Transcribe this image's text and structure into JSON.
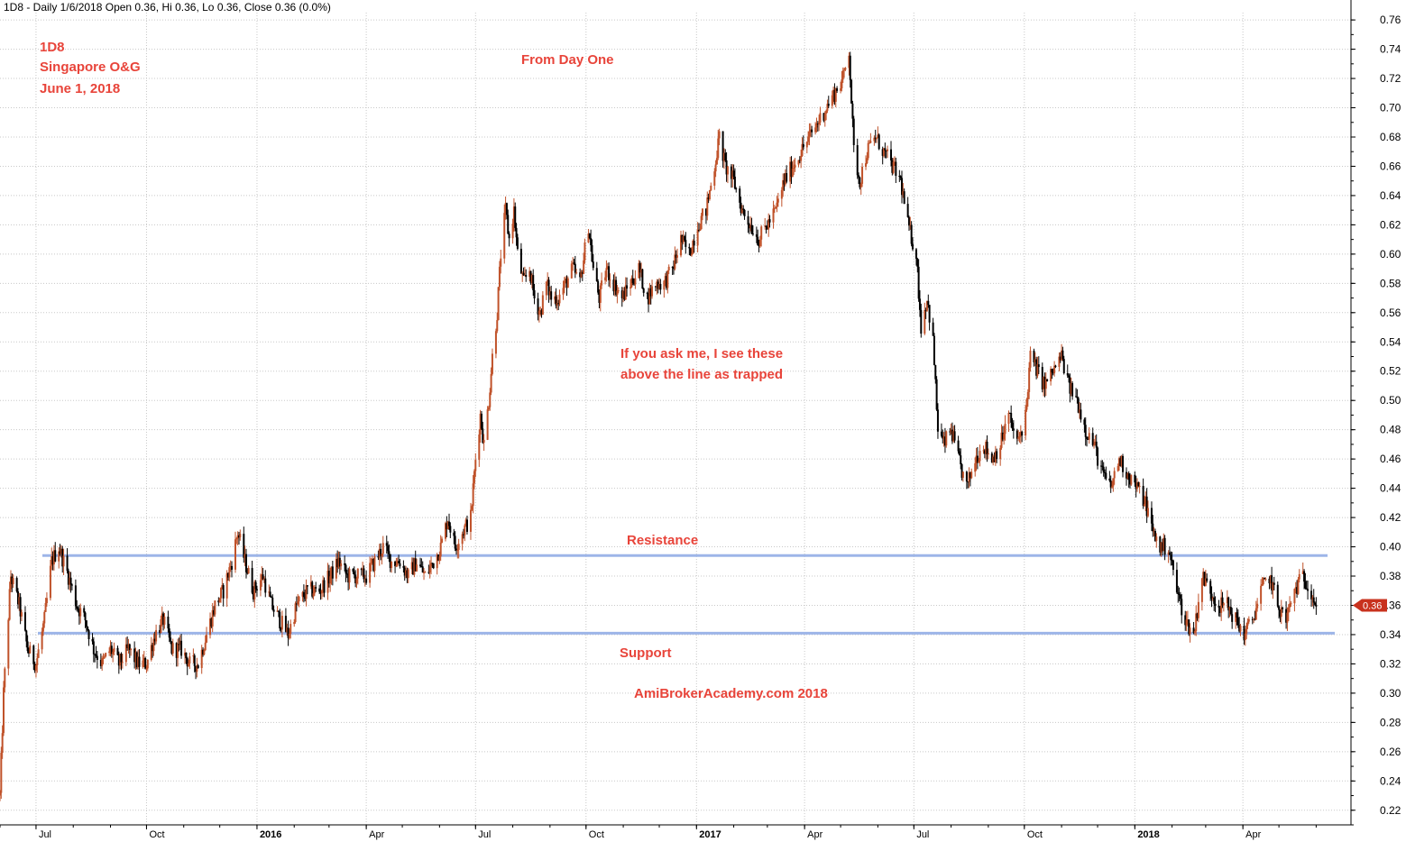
{
  "header": {
    "info": "1D8 - Daily 1/6/2018 Open 0.36, Hi 0.36, Lo 0.36, Close 0.36 (0.0%)"
  },
  "annotations": {
    "ticker": "1D8",
    "sector": "Singapore O&G",
    "date": "June 1, 2018",
    "from_day_one": "From Day One",
    "trapped_line1": "If you ask me, I see these",
    "trapped_line2": "above the line as trapped",
    "resistance": "Resistance",
    "support": "Support",
    "watermark": "AmiBrokerAcademy.com  2018"
  },
  "last_price_label": "0.36",
  "colors": {
    "up_candle": "#c0522a",
    "down_candle": "#000000",
    "level_line": "#9db5e8",
    "annotation": "#e8443a",
    "last_badge": "#c8321e",
    "grid": "#c8c8c8"
  },
  "chart_data": {
    "type": "candlestick",
    "title": "1D8 - Daily 1/6/2018 Open 0.36, Hi 0.36, Lo 0.36, Close 0.36 (0.0%)",
    "y_ticks": [
      "0.22",
      "0.24",
      "0.26",
      "0.28",
      "0.30",
      "0.32",
      "0.34",
      "0.36",
      "0.38",
      "0.40",
      "0.42",
      "0.44",
      "0.46",
      "0.48",
      "0.50",
      "0.52",
      "0.54",
      "0.56",
      "0.58",
      "0.60",
      "0.62",
      "0.64",
      "0.66",
      "0.68",
      "0.70",
      "0.72",
      "0.74",
      "0.76"
    ],
    "ylim": [
      0.21,
      0.765
    ],
    "x_ticks": [
      {
        "label": "Jul",
        "bold": false,
        "date": "2015-07-01"
      },
      {
        "label": "Oct",
        "bold": false,
        "date": "2015-10-01"
      },
      {
        "label": "2016",
        "bold": true,
        "date": "2016-01-01"
      },
      {
        "label": "Apr",
        "bold": false,
        "date": "2016-04-01"
      },
      {
        "label": "Jul",
        "bold": false,
        "date": "2016-07-01"
      },
      {
        "label": "Oct",
        "bold": false,
        "date": "2016-10-01"
      },
      {
        "label": "2017",
        "bold": true,
        "date": "2017-01-01"
      },
      {
        "label": "Apr",
        "bold": false,
        "date": "2017-04-01"
      },
      {
        "label": "Jul",
        "bold": false,
        "date": "2017-07-01"
      },
      {
        "label": "Oct",
        "bold": false,
        "date": "2017-10-01"
      },
      {
        "label": "2018",
        "bold": true,
        "date": "2018-01-01"
      },
      {
        "label": "Apr",
        "bold": false,
        "date": "2018-04-01"
      }
    ],
    "xlim": [
      "2015-06-01",
      "2018-06-30"
    ],
    "resistance": 0.394,
    "support": 0.341,
    "last_close": 0.36,
    "grid": true,
    "price_path": [
      [
        "2015-06-01",
        0.23
      ],
      [
        "2015-06-04",
        0.3
      ],
      [
        "2015-06-10",
        0.38
      ],
      [
        "2015-06-17",
        0.36
      ],
      [
        "2015-06-24",
        0.33
      ],
      [
        "2015-07-01",
        0.32
      ],
      [
        "2015-07-08",
        0.35
      ],
      [
        "2015-07-14",
        0.39
      ],
      [
        "2015-07-20",
        0.4
      ],
      [
        "2015-07-28",
        0.38
      ],
      [
        "2015-08-04",
        0.36
      ],
      [
        "2015-08-11",
        0.35
      ],
      [
        "2015-08-18",
        0.33
      ],
      [
        "2015-08-25",
        0.32
      ],
      [
        "2015-09-01",
        0.33
      ],
      [
        "2015-09-08",
        0.32
      ],
      [
        "2015-09-16",
        0.33
      ],
      [
        "2015-09-24",
        0.32
      ],
      [
        "2015-10-01",
        0.32
      ],
      [
        "2015-10-08",
        0.34
      ],
      [
        "2015-10-15",
        0.35
      ],
      [
        "2015-10-22",
        0.33
      ],
      [
        "2015-10-30",
        0.33
      ],
      [
        "2015-11-06",
        0.32
      ],
      [
        "2015-11-13",
        0.32
      ],
      [
        "2015-11-20",
        0.34
      ],
      [
        "2015-11-27",
        0.36
      ],
      [
        "2015-12-04",
        0.37
      ],
      [
        "2015-12-11",
        0.39
      ],
      [
        "2015-12-16",
        0.41
      ],
      [
        "2015-12-22",
        0.39
      ],
      [
        "2015-12-29",
        0.37
      ],
      [
        "2016-01-06",
        0.38
      ],
      [
        "2016-01-13",
        0.36
      ],
      [
        "2016-01-20",
        0.35
      ],
      [
        "2016-01-27",
        0.34
      ],
      [
        "2016-02-03",
        0.36
      ],
      [
        "2016-02-12",
        0.37
      ],
      [
        "2016-02-22",
        0.37
      ],
      [
        "2016-03-02",
        0.38
      ],
      [
        "2016-03-09",
        0.39
      ],
      [
        "2016-03-16",
        0.38
      ],
      [
        "2016-03-24",
        0.38
      ],
      [
        "2016-04-01",
        0.38
      ],
      [
        "2016-04-08",
        0.39
      ],
      [
        "2016-04-15",
        0.4
      ],
      [
        "2016-04-22",
        0.39
      ],
      [
        "2016-04-29",
        0.39
      ],
      [
        "2016-05-06",
        0.38
      ],
      [
        "2016-05-13",
        0.39
      ],
      [
        "2016-05-20",
        0.38
      ],
      [
        "2016-05-27",
        0.39
      ],
      [
        "2016-06-02",
        0.4
      ],
      [
        "2016-06-08",
        0.42
      ],
      [
        "2016-06-14",
        0.4
      ],
      [
        "2016-06-20",
        0.41
      ],
      [
        "2016-06-27",
        0.42
      ],
      [
        "2016-07-01",
        0.46
      ],
      [
        "2016-07-05",
        0.49
      ],
      [
        "2016-07-08",
        0.47
      ],
      [
        "2016-07-12",
        0.5
      ],
      [
        "2016-07-15",
        0.53
      ],
      [
        "2016-07-19",
        0.56
      ],
      [
        "2016-07-22",
        0.6
      ],
      [
        "2016-07-26",
        0.63
      ],
      [
        "2016-07-29",
        0.61
      ],
      [
        "2016-08-02",
        0.63
      ],
      [
        "2016-08-05",
        0.6
      ],
      [
        "2016-08-10",
        0.58
      ],
      [
        "2016-08-15",
        0.59
      ],
      [
        "2016-08-19",
        0.57
      ],
      [
        "2016-08-24",
        0.56
      ],
      [
        "2016-08-29",
        0.58
      ],
      [
        "2016-09-02",
        0.57
      ],
      [
        "2016-09-08",
        0.57
      ],
      [
        "2016-09-14",
        0.58
      ],
      [
        "2016-09-20",
        0.59
      ],
      [
        "2016-09-26",
        0.58
      ],
      [
        "2016-10-03",
        0.62
      ],
      [
        "2016-10-07",
        0.59
      ],
      [
        "2016-10-12",
        0.57
      ],
      [
        "2016-10-18",
        0.59
      ],
      [
        "2016-10-24",
        0.58
      ],
      [
        "2016-10-31",
        0.57
      ],
      [
        "2016-11-07",
        0.58
      ],
      [
        "2016-11-14",
        0.59
      ],
      [
        "2016-11-21",
        0.57
      ],
      [
        "2016-11-28",
        0.58
      ],
      [
        "2016-12-05",
        0.58
      ],
      [
        "2016-12-12",
        0.59
      ],
      [
        "2016-12-19",
        0.61
      ],
      [
        "2016-12-26",
        0.6
      ],
      [
        "2017-01-02",
        0.62
      ],
      [
        "2017-01-09",
        0.63
      ],
      [
        "2017-01-16",
        0.66
      ],
      [
        "2017-01-20",
        0.68
      ],
      [
        "2017-01-25",
        0.66
      ],
      [
        "2017-02-01",
        0.65
      ],
      [
        "2017-02-08",
        0.63
      ],
      [
        "2017-02-15",
        0.62
      ],
      [
        "2017-02-22",
        0.61
      ],
      [
        "2017-03-01",
        0.62
      ],
      [
        "2017-03-08",
        0.63
      ],
      [
        "2017-03-15",
        0.65
      ],
      [
        "2017-03-22",
        0.66
      ],
      [
        "2017-03-29",
        0.67
      ],
      [
        "2017-04-05",
        0.68
      ],
      [
        "2017-04-12",
        0.69
      ],
      [
        "2017-04-19",
        0.7
      ],
      [
        "2017-04-26",
        0.71
      ],
      [
        "2017-05-03",
        0.72
      ],
      [
        "2017-05-08",
        0.74
      ],
      [
        "2017-05-12",
        0.67
      ],
      [
        "2017-05-17",
        0.65
      ],
      [
        "2017-05-23",
        0.67
      ],
      [
        "2017-05-30",
        0.68
      ],
      [
        "2017-06-06",
        0.67
      ],
      [
        "2017-06-13",
        0.66
      ],
      [
        "2017-06-20",
        0.65
      ],
      [
        "2017-06-26",
        0.62
      ],
      [
        "2017-07-03",
        0.6
      ],
      [
        "2017-07-07",
        0.55
      ],
      [
        "2017-07-12",
        0.57
      ],
      [
        "2017-07-17",
        0.54
      ],
      [
        "2017-07-21",
        0.48
      ],
      [
        "2017-07-26",
        0.47
      ],
      [
        "2017-08-01",
        0.48
      ],
      [
        "2017-08-07",
        0.46
      ],
      [
        "2017-08-14",
        0.44
      ],
      [
        "2017-08-21",
        0.46
      ],
      [
        "2017-08-28",
        0.47
      ],
      [
        "2017-09-04",
        0.46
      ],
      [
        "2017-09-11",
        0.47
      ],
      [
        "2017-09-18",
        0.49
      ],
      [
        "2017-09-25",
        0.47
      ],
      [
        "2017-10-02",
        0.49
      ],
      [
        "2017-10-06",
        0.53
      ],
      [
        "2017-10-12",
        0.52
      ],
      [
        "2017-10-18",
        0.51
      ],
      [
        "2017-10-25",
        0.52
      ],
      [
        "2017-11-01",
        0.53
      ],
      [
        "2017-11-07",
        0.51
      ],
      [
        "2017-11-14",
        0.5
      ],
      [
        "2017-11-21",
        0.48
      ],
      [
        "2017-11-28",
        0.47
      ],
      [
        "2017-12-05",
        0.45
      ],
      [
        "2017-12-12",
        0.44
      ],
      [
        "2017-12-19",
        0.46
      ],
      [
        "2017-12-26",
        0.45
      ],
      [
        "2018-01-03",
        0.44
      ],
      [
        "2018-01-10",
        0.43
      ],
      [
        "2018-01-16",
        0.41
      ],
      [
        "2018-01-22",
        0.4
      ],
      [
        "2018-01-29",
        0.4
      ],
      [
        "2018-02-05",
        0.37
      ],
      [
        "2018-02-12",
        0.35
      ],
      [
        "2018-02-19",
        0.34
      ],
      [
        "2018-02-26",
        0.38
      ],
      [
        "2018-03-05",
        0.37
      ],
      [
        "2018-03-12",
        0.36
      ],
      [
        "2018-03-19",
        0.36
      ],
      [
        "2018-03-26",
        0.35
      ],
      [
        "2018-04-02",
        0.34
      ],
      [
        "2018-04-09",
        0.35
      ],
      [
        "2018-04-16",
        0.37
      ],
      [
        "2018-04-23",
        0.38
      ],
      [
        "2018-04-30",
        0.36
      ],
      [
        "2018-05-07",
        0.35
      ],
      [
        "2018-05-14",
        0.37
      ],
      [
        "2018-05-21",
        0.38
      ],
      [
        "2018-05-28",
        0.37
      ],
      [
        "2018-06-01",
        0.36
      ]
    ]
  }
}
